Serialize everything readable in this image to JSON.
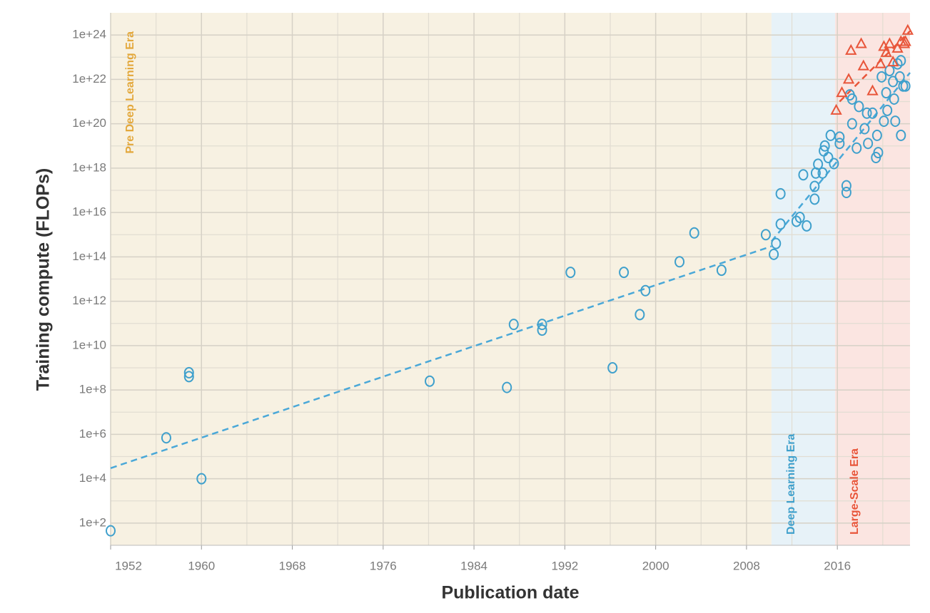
{
  "chart_data": {
    "type": "scatter",
    "x_label": "Publication date",
    "y_label": "Training compute (FLOPs)",
    "log_y": true,
    "grid": true,
    "xlim": [
      1952,
      2022.4
    ],
    "ylim": [
      10,
      1e+25
    ],
    "xticks": [
      1952,
      1960,
      1968,
      1976,
      1984,
      1992,
      2000,
      2008,
      2016
    ],
    "minor_xticks": [
      1956,
      1964,
      1972,
      1980,
      1988,
      1996,
      2004,
      2012,
      2020
    ],
    "yticks": [
      {
        "value": 100,
        "label": "1e+2"
      },
      {
        "value": 10000,
        "label": "1e+4"
      },
      {
        "value": 1000000,
        "label": "1e+6"
      },
      {
        "value": 100000000,
        "label": "1e+8"
      },
      {
        "value": 10000000000.0,
        "label": "1e+10"
      },
      {
        "value": 1000000000000.0,
        "label": "1e+12"
      },
      {
        "value": 100000000000000.0,
        "label": "1e+14"
      },
      {
        "value": 1e+16,
        "label": "1e+16"
      },
      {
        "value": 1e+18,
        "label": "1e+18"
      },
      {
        "value": 1e+20,
        "label": "1e+20"
      },
      {
        "value": 1e+22,
        "label": "1e+22"
      },
      {
        "value": 1e+24,
        "label": "1e+24"
      }
    ],
    "minor_yticks": [
      1000,
      100000,
      10000000,
      1000000000,
      100000000000.0,
      10000000000000.0,
      1000000000000000.0,
      1e+17,
      1e+19,
      1e+21,
      1e+23
    ],
    "eras": [
      {
        "name": "Pre Deep Learning Era",
        "start": 1952,
        "end": 2010.2,
        "color": "#f7f1e2",
        "text_color": "#e3a83c"
      },
      {
        "name": "Deep Learning Era",
        "start": 2010.2,
        "end": 2015.8,
        "color": "#e7f2f8",
        "text_color": "#3fa0cc"
      },
      {
        "name": "Large-Scale Era",
        "start": 2015.8,
        "end": 2022.4,
        "color": "#fbe5e1",
        "text_color": "#e8553a"
      }
    ],
    "series": [
      {
        "marker": "circle",
        "color": "#3fa0cc",
        "x": [
          1952,
          1956.9,
          1958.9,
          1958.9,
          1960,
          1980.1,
          1986.9,
          1987.5,
          1990,
          1990,
          1992.5,
          1996.2,
          1997.2,
          1998.6,
          1999.1,
          2002.1,
          2003.4,
          2005.8,
          2009.7,
          2010.4,
          2010.6,
          2011,
          2011,
          2012.4,
          2012.7,
          2013,
          2013.3,
          2014,
          2014,
          2014.1,
          2014.3,
          2014.7,
          2014.8,
          2014.9,
          2015.2,
          2015.4,
          2015.7,
          2016.2,
          2016.2,
          2016.8,
          2016.8,
          2017.1,
          2017.3,
          2017.3,
          2017.7,
          2017.9,
          2018.4,
          2018.6,
          2018.7,
          2019.1,
          2019.4,
          2019.5,
          2019.6,
          2019.9,
          2020.1,
          2020.3,
          2020.4,
          2020.6,
          2020.9,
          2021,
          2021.1,
          2021.3,
          2021.5,
          2021.6,
          2021.6,
          2021.8,
          2022
        ],
        "y": [
          45,
          700000,
          600000000,
          400000000,
          10000,
          250000000,
          130000000,
          90000000000,
          90000000000,
          50000000000,
          20000000000000.0,
          1000000000,
          20000000000000.0,
          250000000000,
          3000000000000.0,
          60000000000000.0,
          1200000000000000.0,
          25000000000000.0,
          1000000000000000.0,
          130000000000000.0,
          400000000000000.0,
          7e+16,
          3000000000000000.0,
          4000000000000000.0,
          6000000000000000.0,
          5e+17,
          2500000000000000.0,
          4e+16,
          1.5e+17,
          6e+17,
          1.5e+18,
          6e+17,
          6e+18,
          1e+19,
          3e+18,
          3e+19,
          1.6e+18,
          2.5e+19,
          1.3e+19,
          8e+16,
          1.6e+17,
          2e+21,
          1.3e+21,
          1e+20,
          8e+18,
          6e+20,
          6e+19,
          3e+20,
          1.3e+19,
          3e+20,
          3e+18,
          3e+19,
          5e+18,
          1.3e+22,
          1.3e+20,
          2.5e+21,
          4e+20,
          2.5e+22,
          8e+21,
          1.3e+21,
          1.3e+20,
          5e+22,
          1.3e+22,
          7e+22,
          3e+19,
          5e+21,
          5e+21
        ]
      },
      {
        "marker": "triangle",
        "color": "#e8553a",
        "x": [
          2015.9,
          2016.4,
          2017,
          2017.2,
          2018.1,
          2018.3,
          2019.1,
          2019.8,
          2020.1,
          2020.3,
          2020.6,
          2020.9,
          2021.3,
          2021.6,
          2021.9,
          2022.2,
          2022
        ],
        "y": [
          4e+20,
          2.5e+21,
          1e+22,
          2e+23,
          4e+23,
          4e+22,
          3e+21,
          5e+22,
          3e+23,
          1.6e+23,
          4e+23,
          6e+22,
          2.5e+23,
          5e+23,
          4e+23,
          1.6e+24,
          5e+23
        ]
      }
    ],
    "trend_lines": [
      {
        "color": "#4aa8d8",
        "x": [
          1952,
          2010.2
        ],
        "y": [
          30000,
          300000000000000.0
        ]
      },
      {
        "color": "#4aa8d8",
        "x": [
          2010.2,
          2022.4
        ],
        "y": [
          500000000000000.0,
          2e+22
        ]
      },
      {
        "color": "#e8553a",
        "x": [
          2016.2,
          2022.4
        ],
        "y": [
          1e+21,
          1.5e+24
        ]
      }
    ]
  }
}
